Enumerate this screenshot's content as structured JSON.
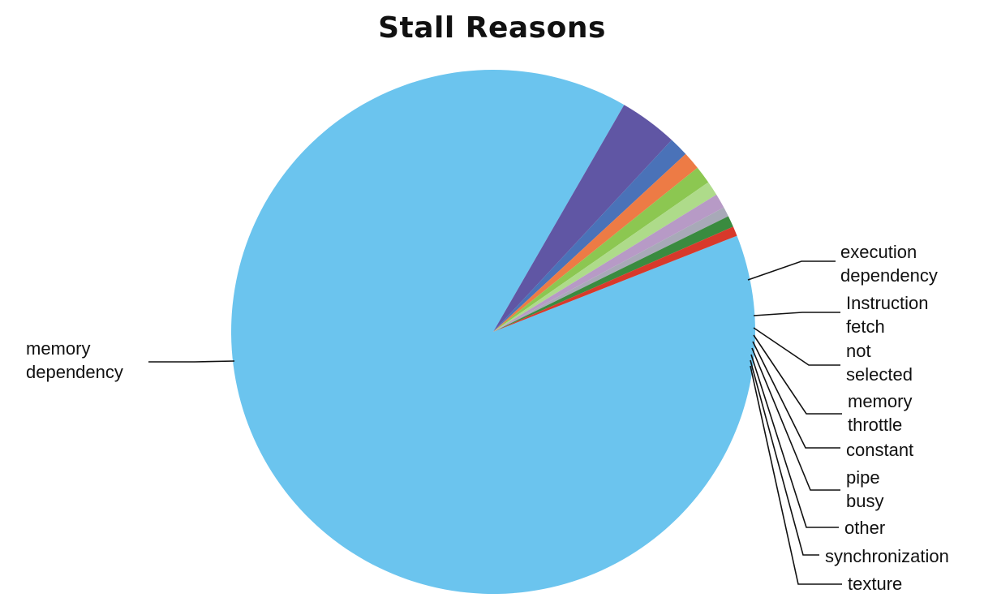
{
  "chart_data": {
    "type": "pie",
    "title": "Stall Reasons",
    "slices": [
      {
        "label": "memory dependency",
        "value": 89.3,
        "color": "#6BC4EE"
      },
      {
        "label": "execution dependency",
        "value": 3.6,
        "color": "#6056A4"
      },
      {
        "label": "Instruction fetch",
        "value": 1.2,
        "color": "#4A72B8"
      },
      {
        "label": "not selected",
        "value": 1.1,
        "color": "#ED7B45"
      },
      {
        "label": "memory throttle",
        "value": 1.1,
        "color": "#8CC751"
      },
      {
        "label": "constant",
        "value": 0.9,
        "color": "#AEDB8A"
      },
      {
        "label": "pipe busy",
        "value": 0.9,
        "color": "#B79AC6"
      },
      {
        "label": "other",
        "value": 0.6,
        "color": "#A8A9B8"
      },
      {
        "label": "synchronization",
        "value": 0.7,
        "color": "#3A8B3F"
      },
      {
        "label": "texture",
        "value": 0.6,
        "color": "#D8392B"
      }
    ],
    "labels_display": [
      [
        "memory",
        "dependency"
      ],
      [
        "execution",
        "dependency"
      ],
      [
        "Instruction",
        "fetch"
      ],
      [
        "not",
        "selected"
      ],
      [
        "memory",
        "throttle"
      ],
      [
        "constant"
      ],
      [
        "pipe",
        "busy"
      ],
      [
        "other"
      ],
      [
        "synchronization"
      ],
      [
        "texture"
      ]
    ]
  }
}
